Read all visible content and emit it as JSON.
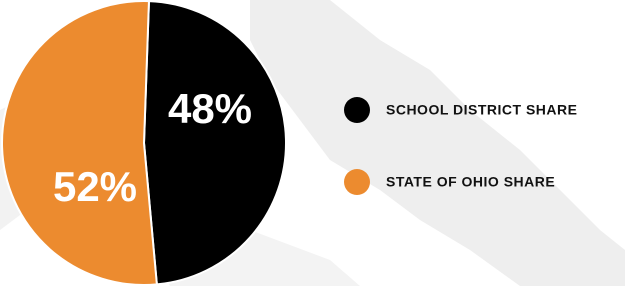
{
  "chart_data": {
    "type": "pie",
    "categories": [
      "SCHOOL DISTRICT SHARE",
      "STATE OF OHIO SHARE"
    ],
    "values": [
      48,
      52
    ],
    "value_labels": [
      "48%",
      "52%"
    ],
    "colors": [
      "#000000",
      "#ec8b2f"
    ]
  }
}
